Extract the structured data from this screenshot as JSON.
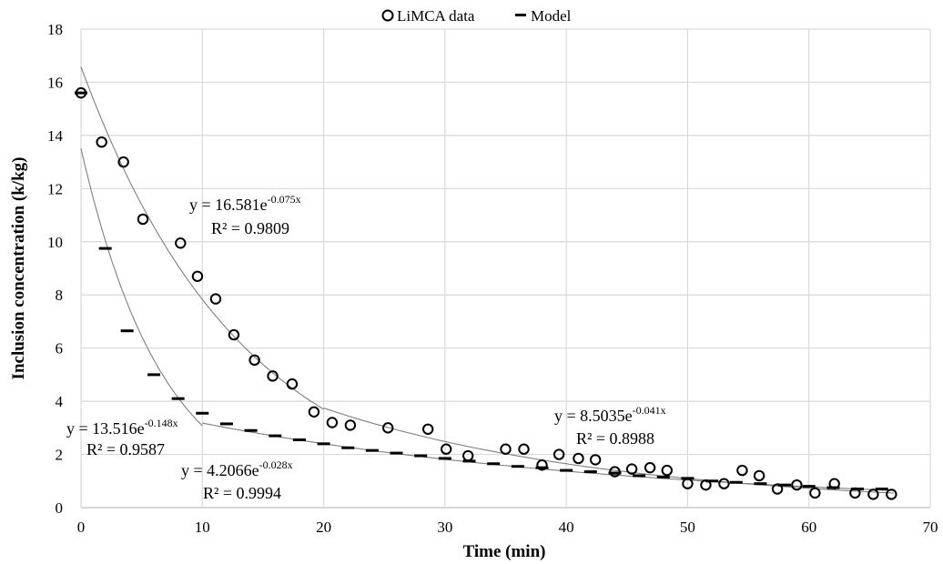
{
  "chart_data": {
    "type": "scatter",
    "xlabel": "Time (min)",
    "ylabel": "Inclusion concentration (k/kg)",
    "xlim": [
      0,
      70
    ],
    "ylim": [
      0,
      18
    ],
    "xticks": [
      0,
      10,
      20,
      30,
      40,
      50,
      60,
      70
    ],
    "yticks": [
      0,
      2,
      4,
      6,
      8,
      10,
      12,
      14,
      16,
      18
    ],
    "grid": true,
    "legend_position": "top",
    "legend": [
      {
        "label": "LiMCA data",
        "marker": "circle"
      },
      {
        "label": "Model",
        "marker": "dash"
      }
    ],
    "series": [
      {
        "name": "LiMCA data",
        "marker": "circle",
        "x": [
          0,
          1.7,
          3.5,
          5.1,
          8.2,
          9.6,
          11.1,
          12.6,
          14.3,
          15.8,
          17.4,
          19.2,
          20.7,
          22.2,
          25.3,
          28.6,
          30.1,
          31.9,
          35.0,
          36.5,
          38.0,
          39.4,
          41.0,
          42.4,
          44.0,
          45.4,
          46.9,
          48.3,
          50.0,
          51.5,
          53.0,
          54.5,
          55.9,
          57.4,
          59.0,
          60.5,
          62.1,
          63.8,
          65.3,
          66.8
        ],
        "y": [
          15.6,
          13.75,
          13.0,
          10.85,
          9.95,
          8.7,
          7.85,
          6.5,
          5.55,
          4.95,
          4.65,
          3.6,
          3.2,
          3.1,
          3.0,
          2.95,
          2.2,
          1.95,
          2.2,
          2.2,
          1.6,
          2.0,
          1.85,
          1.8,
          1.35,
          1.45,
          1.5,
          1.4,
          0.9,
          0.85,
          0.9,
          1.4,
          1.2,
          0.7,
          0.85,
          0.55,
          0.9,
          0.55,
          0.5,
          0.5
        ]
      },
      {
        "name": "Model",
        "marker": "dash",
        "x": [
          0,
          2.0,
          3.8,
          6.0,
          8.0,
          10.0,
          12.0,
          14.0,
          16.0,
          18.0,
          20.0,
          22.0,
          24.0,
          26.0,
          28.0,
          30.0,
          32.0,
          34.0,
          36.0,
          38.0,
          40.0,
          42.0,
          44.0,
          46.0,
          48.0,
          50.0,
          52.0,
          54.0,
          56.0,
          58.0,
          60.0,
          62.0,
          64.0,
          66.0
        ],
        "y": [
          15.6,
          9.75,
          6.65,
          5.0,
          4.1,
          3.55,
          3.15,
          2.9,
          2.7,
          2.55,
          2.4,
          2.25,
          2.15,
          2.05,
          1.95,
          1.85,
          1.75,
          1.65,
          1.55,
          1.5,
          1.4,
          1.35,
          1.3,
          1.2,
          1.15,
          1.1,
          1.0,
          0.95,
          0.9,
          0.85,
          0.8,
          0.75,
          0.7,
          0.7
        ]
      }
    ],
    "trendlines": [
      {
        "of": "LiMCA data",
        "a": 16.581,
        "b": -0.075,
        "x_range": [
          0,
          20
        ]
      },
      {
        "of": "LiMCA data",
        "a": 8.5035,
        "b": -0.041,
        "x_range": [
          20,
          67
        ]
      },
      {
        "of": "Model",
        "a": 13.516,
        "b": -0.148,
        "x_range": [
          0,
          10
        ]
      },
      {
        "of": "Model",
        "a": 4.2066,
        "b": -0.028,
        "x_range": [
          10,
          67
        ]
      }
    ],
    "annotations": [
      {
        "coef": "16.581",
        "exp": "-0.075x",
        "r2": "R² = 0.9809"
      },
      {
        "coef": "8.5035",
        "exp": "-0.041x",
        "r2": "R² = 0.8988"
      },
      {
        "coef": "13.516",
        "exp": "-0.148x",
        "r2": "R² = 0.9587"
      },
      {
        "coef": "4.2066",
        "exp": "-0.028x",
        "r2": "R² = 0.9994"
      }
    ]
  }
}
